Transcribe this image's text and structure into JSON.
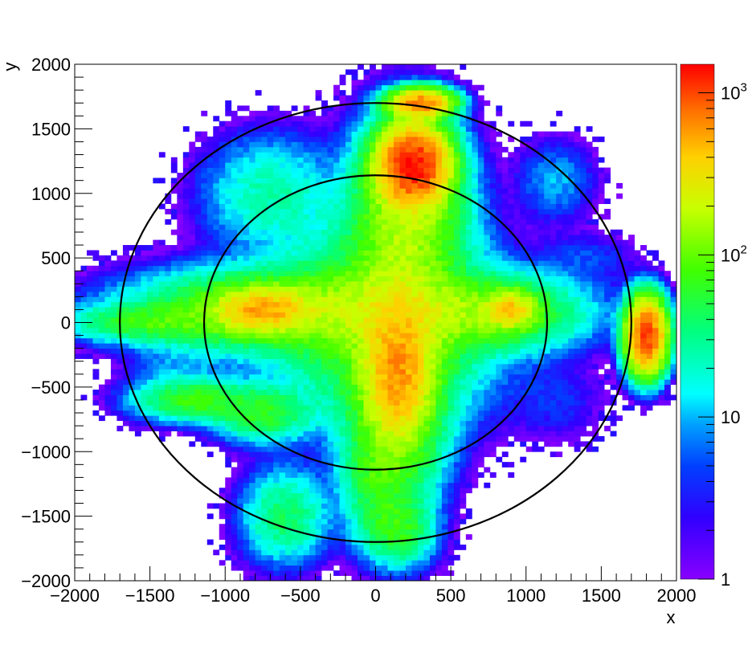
{
  "chart_data": {
    "type": "heatmap",
    "title": "",
    "xlabel": "x",
    "ylabel": "y",
    "xlim": [
      -2000,
      2000
    ],
    "ylim": [
      -2000,
      2000
    ],
    "x_ticks": [
      "−2000",
      "−1500",
      "−1000",
      "−500",
      "0",
      "500",
      "1000",
      "1500",
      "2000"
    ],
    "x_tick_values": [
      -2000,
      -1500,
      -1000,
      -500,
      0,
      500,
      1000,
      1500,
      2000
    ],
    "y_ticks": [
      "−2000",
      "−1500",
      "−1000",
      "−500",
      "0",
      "500",
      "1000",
      "1500",
      "2000"
    ],
    "y_tick_values": [
      -2000,
      -1500,
      -1000,
      -500,
      0,
      500,
      1000,
      1500,
      2000
    ],
    "colorbar": {
      "scale": "log",
      "range": [
        1,
        1500
      ],
      "labels": [
        {
          "value": 1,
          "base": "1",
          "exp": ""
        },
        {
          "value": 10,
          "base": "10",
          "exp": ""
        },
        {
          "value": 100,
          "base": "10",
          "exp": "2"
        },
        {
          "value": 1000,
          "base": "10",
          "exp": "3"
        }
      ],
      "palette": "rainbow-violet-to-red"
    },
    "bins": {
      "nx": 100,
      "ny": 100
    },
    "grid": false,
    "overlays": [
      {
        "shape": "circle",
        "center": [
          0,
          0
        ],
        "radius": 1700,
        "color": "#000000"
      },
      {
        "shape": "circle",
        "center": [
          0,
          0
        ],
        "radius": 1140,
        "color": "#000000"
      }
    ],
    "features": [
      {
        "description": "central cross-shaped distribution with four arms along x and y axes, density peaks",
        "peaks": [
          {
            "x": 250,
            "y": 1220,
            "count": 1300
          },
          {
            "x": 300,
            "y": 1700,
            "count": 700
          },
          {
            "x": -750,
            "y": 100,
            "count": 600
          },
          {
            "x": 900,
            "y": 100,
            "count": 550
          },
          {
            "x": 150,
            "y": -400,
            "count": 500
          },
          {
            "x": 1800,
            "y": -100,
            "count": 1000
          }
        ]
      }
    ]
  }
}
